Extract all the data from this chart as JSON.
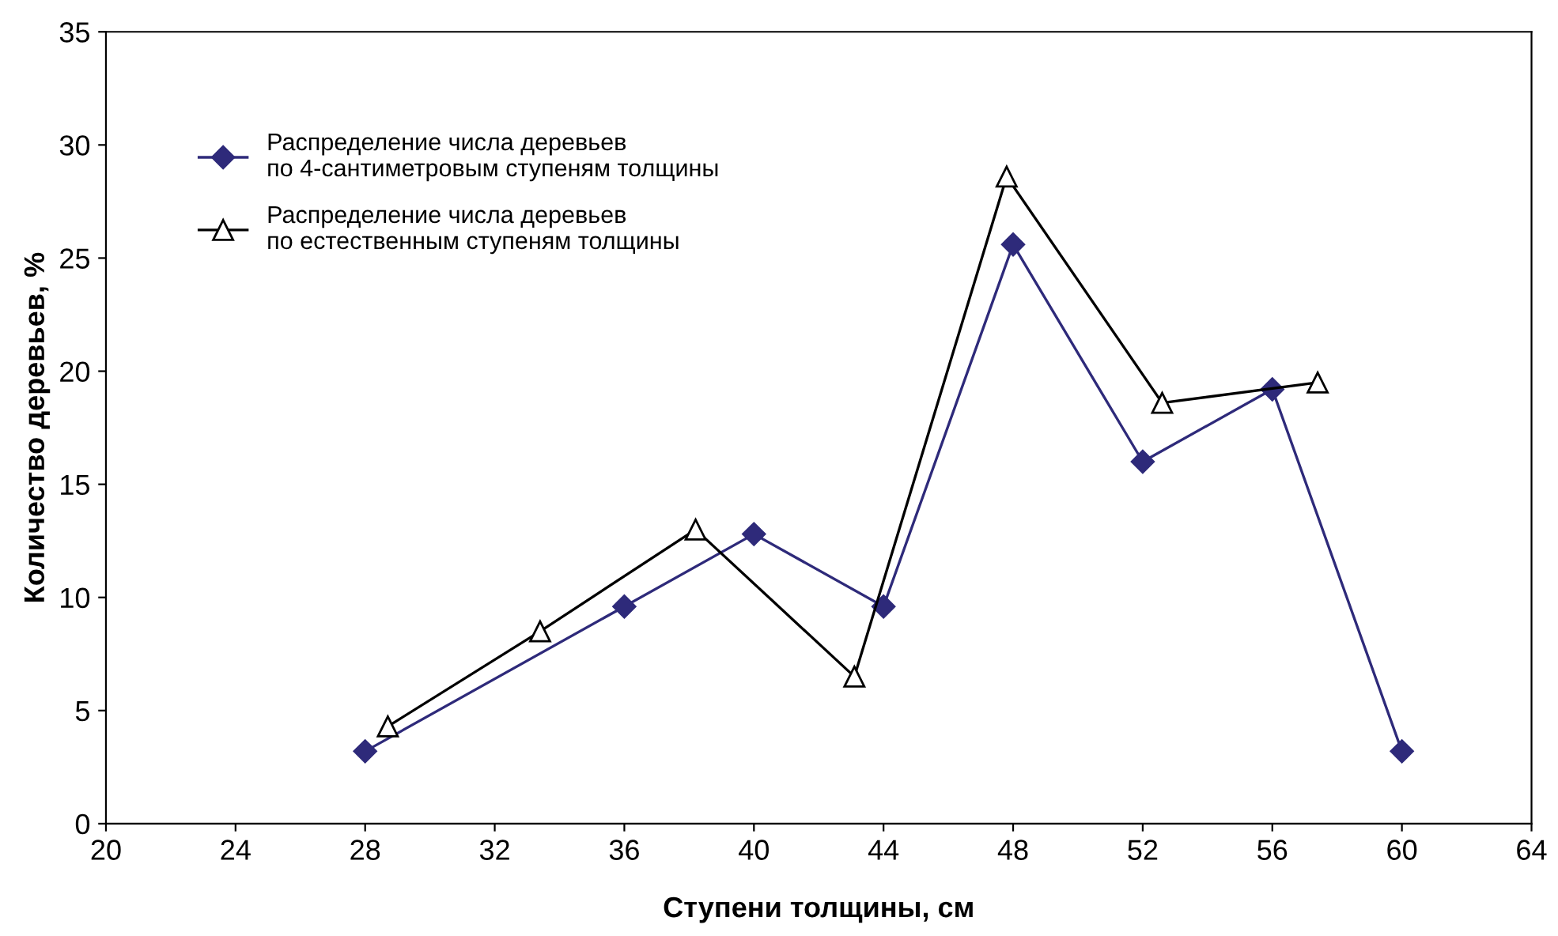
{
  "chart_data": {
    "type": "line",
    "xlabel": "Ступени толщины, см",
    "ylabel": "Количество деревьев, %",
    "xlim": [
      20,
      64
    ],
    "xticks": [
      20,
      24,
      28,
      32,
      36,
      40,
      44,
      48,
      52,
      56,
      60,
      64
    ],
    "ylim": [
      0,
      35
    ],
    "yticks": [
      0,
      5,
      10,
      15,
      20,
      25,
      30,
      35
    ],
    "grid": false,
    "legend": "top left",
    "series": [
      {
        "name": "Распределение числа деревьев\nпо 4-сантиметровым ступеням толщины",
        "color": "#2e2a7a",
        "marker": "diamond",
        "x": [
          28,
          36,
          40,
          44,
          48,
          52,
          56,
          60
        ],
        "values": [
          3.2,
          9.6,
          12.8,
          9.6,
          25.6,
          16.0,
          19.2,
          3.2
        ]
      },
      {
        "name": "Распределение числа деревьев\nпо естественным ступеням толщины",
        "color": "#000000",
        "marker": "triangle",
        "x": [
          28.7,
          33.4,
          38.2,
          43.1,
          47.8,
          52.6,
          57.4
        ],
        "values": [
          4.3,
          8.5,
          13.0,
          6.5,
          28.6,
          18.6,
          19.5
        ]
      }
    ]
  }
}
